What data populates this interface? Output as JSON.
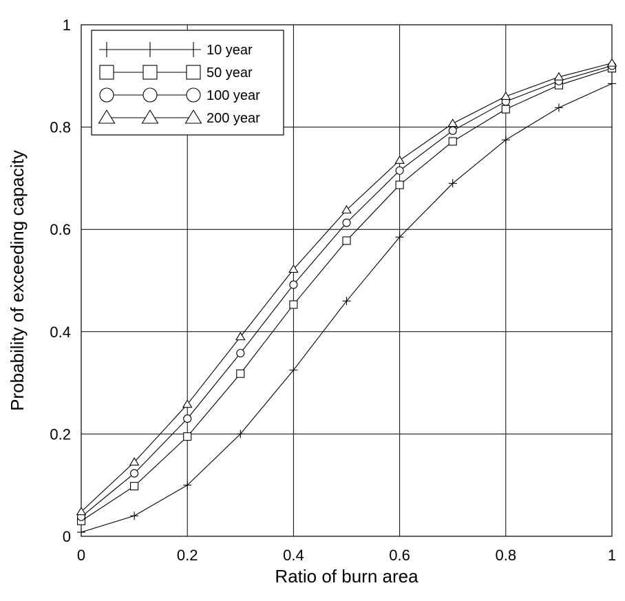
{
  "chart_data": {
    "type": "line",
    "xlabel": "Ratio of burn area",
    "ylabel": "Probability of exceeding capacity",
    "xlim": [
      0,
      1
    ],
    "ylim": [
      0,
      1
    ],
    "x_ticks": [
      0,
      0.2,
      0.4,
      0.6,
      0.8,
      1
    ],
    "x_tick_labels": [
      "0",
      "0.2",
      "0.4",
      "0.6",
      "0.8",
      "1"
    ],
    "y_ticks": [
      0,
      0.2,
      0.4,
      0.6,
      0.8,
      1
    ],
    "y_tick_labels": [
      "0",
      "0.2",
      "0.4",
      "0.6",
      "0.8",
      "1"
    ],
    "grid": true,
    "legend_position": "top-left",
    "x": [
      0,
      0.1,
      0.2,
      0.3,
      0.4,
      0.5,
      0.6,
      0.7,
      0.8,
      0.9,
      1.0
    ],
    "series": [
      {
        "name": "10 year",
        "marker": "plus",
        "values": [
          0.008,
          0.04,
          0.1,
          0.2,
          0.325,
          0.46,
          0.585,
          0.69,
          0.775,
          0.838,
          0.885
        ]
      },
      {
        "name": "50 year",
        "marker": "square",
        "values": [
          0.03,
          0.098,
          0.195,
          0.318,
          0.453,
          0.578,
          0.687,
          0.772,
          0.835,
          0.882,
          0.915
        ]
      },
      {
        "name": "100 year",
        "marker": "circle",
        "values": [
          0.038,
          0.123,
          0.23,
          0.358,
          0.492,
          0.613,
          0.715,
          0.793,
          0.85,
          0.89,
          0.92
        ]
      },
      {
        "name": "200 year",
        "marker": "triangle",
        "values": [
          0.048,
          0.145,
          0.258,
          0.39,
          0.522,
          0.638,
          0.735,
          0.807,
          0.86,
          0.898,
          0.925
        ]
      }
    ]
  }
}
